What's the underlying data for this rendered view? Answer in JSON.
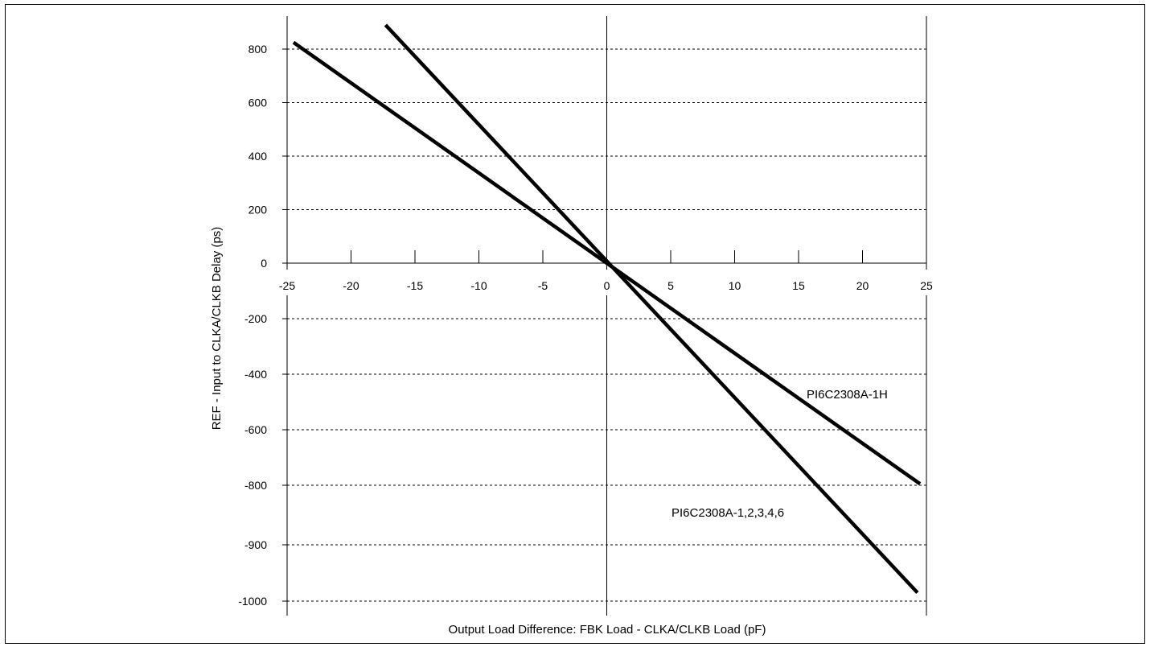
{
  "chart_data": {
    "type": "line",
    "xlabel": "Output Load Difference: FBK Load - CLKA/CLKB Load (pF)",
    "ylabel": "REF - Input to CLKA/CLKB Delay (ps)",
    "x_ticks": [
      -25,
      -20,
      -15,
      -10,
      -5,
      0,
      5,
      10,
      15,
      20,
      25
    ],
    "y_ticks": [
      800,
      600,
      400,
      200,
      0,
      -200,
      -400,
      -600,
      -800,
      -900,
      -1000
    ],
    "xlim": [
      -25,
      25
    ],
    "grid": "horizontal dashed",
    "series": [
      {
        "name": "PI6C2308A-1H",
        "x": [
          -24.5,
          24.5
        ],
        "y": [
          825,
          -795
        ]
      },
      {
        "name": "PI6C2308A-1,2,3,4,6",
        "x": [
          -17.3,
          24.3
        ],
        "y": [
          890,
          -985
        ]
      }
    ],
    "color": "#000000"
  }
}
